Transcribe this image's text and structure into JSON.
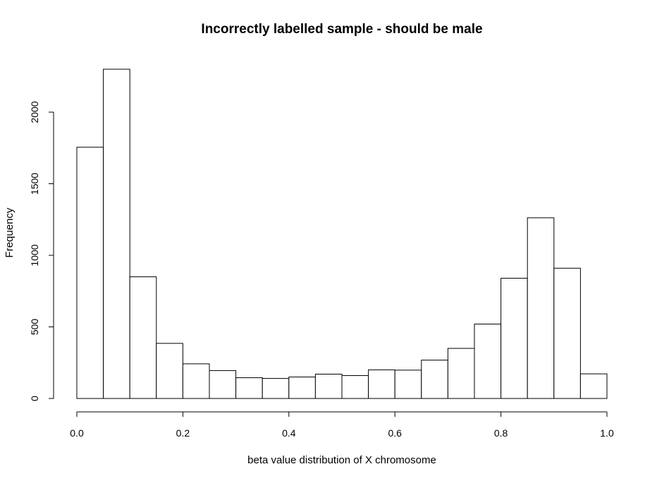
{
  "chart_data": {
    "type": "bar",
    "title": "Incorrectly labelled sample - should be male",
    "xlabel": "beta value distribution of X chromosome",
    "ylabel": "Frequency",
    "xlim": [
      0,
      1
    ],
    "ylim": [
      0,
      2300
    ],
    "grid": false,
    "bin_width": 0.05,
    "bin_starts": [
      0,
      0.05,
      0.1,
      0.15,
      0.2,
      0.25,
      0.3,
      0.35,
      0.4,
      0.45,
      0.5,
      0.55,
      0.6,
      0.65,
      0.7,
      0.75,
      0.8,
      0.85,
      0.9,
      0.95
    ],
    "values": [
      1755,
      2300,
      850,
      385,
      242,
      195,
      145,
      140,
      150,
      170,
      160,
      200,
      198,
      268,
      350,
      520,
      840,
      1262,
      910,
      172
    ],
    "x_ticks": [
      {
        "value": 0.0,
        "label": "0.0"
      },
      {
        "value": 0.2,
        "label": "0.2"
      },
      {
        "value": 0.4,
        "label": "0.4"
      },
      {
        "value": 0.6,
        "label": "0.6"
      },
      {
        "value": 0.8,
        "label": "0.8"
      },
      {
        "value": 1.0,
        "label": "1.0"
      }
    ],
    "y_ticks": [
      {
        "value": 0,
        "label": "0"
      },
      {
        "value": 500,
        "label": "500"
      },
      {
        "value": 1000,
        "label": "1000"
      },
      {
        "value": 1500,
        "label": "1500"
      },
      {
        "value": 2000,
        "label": "2000"
      }
    ]
  }
}
